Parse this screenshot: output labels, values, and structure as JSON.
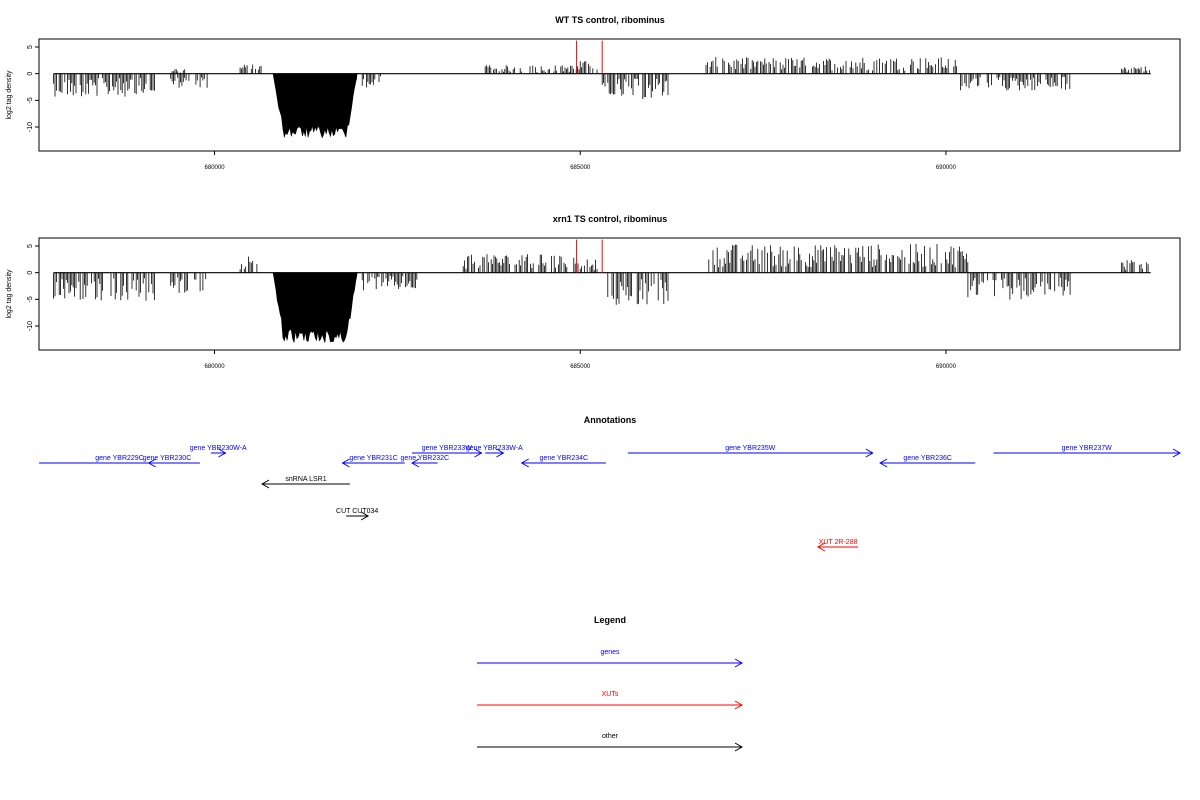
{
  "colors": {
    "gene": "#0000ff",
    "xut": "#ff0000",
    "other": "#000000",
    "signal": "#000000",
    "highlight": "#ff0000"
  },
  "chart_data": [
    {
      "type": "bar",
      "title": "WT TS control, ribominus",
      "ylabel": "log2 tag density",
      "xlim": [
        677600,
        693200
      ],
      "ylim": [
        -14.5,
        6.5
      ],
      "yticks": [
        5,
        0,
        -5,
        -10
      ],
      "xticks": [
        680000,
        685000,
        690000
      ],
      "xtick_labels": [
        "680000",
        "685000",
        "690000"
      ],
      "segments": [
        {
          "x0": 677800,
          "x1": 679200,
          "amp": -3.2,
          "sign": -1
        },
        {
          "x0": 679400,
          "x1": 679900,
          "amp": -2.0,
          "sign": -1
        },
        {
          "x0": 679400,
          "x1": 679600,
          "amp": 0.8,
          "sign": 1
        },
        {
          "x0": 680350,
          "x1": 680650,
          "amp": 1.3,
          "sign": 1
        },
        {
          "x0": 681250,
          "x1": 681950,
          "amp": -1.6,
          "sign": -1
        },
        {
          "x0": 682000,
          "x1": 682300,
          "amp": -2.0,
          "sign": -1
        },
        {
          "x0": 683700,
          "x1": 685000,
          "amp": 1.2,
          "sign": 1
        },
        {
          "x0": 685000,
          "x1": 685250,
          "amp": 1.8,
          "sign": 1
        },
        {
          "x0": 685300,
          "x1": 686200,
          "amp": -3.6,
          "sign": -1
        },
        {
          "x0": 686700,
          "x1": 690200,
          "amp": 2.3,
          "sign": 1
        },
        {
          "x0": 690200,
          "x1": 691700,
          "amp": -2.4,
          "sign": -1
        },
        {
          "x0": 692400,
          "x1": 692800,
          "amp": 1.1,
          "sign": 1
        }
      ],
      "filled": [
        {
          "x0": 680800,
          "x1": 681950,
          "depth": -11.5
        }
      ],
      "red_lines": [
        {
          "x": 684950,
          "value": 6.2
        },
        {
          "x": 685300,
          "value": 6.2
        }
      ]
    },
    {
      "type": "bar",
      "title": "xrn1 TS control, ribominus",
      "ylabel": "log2 tag density",
      "xlim": [
        677600,
        693200
      ],
      "ylim": [
        -14.5,
        6.5
      ],
      "yticks": [
        5,
        0,
        -5,
        -10
      ],
      "xticks": [
        680000,
        685000,
        690000
      ],
      "xtick_labels": [
        "680000",
        "685000",
        "690000"
      ],
      "segments": [
        {
          "x0": 677800,
          "x1": 679200,
          "amp": -4.0,
          "sign": -1
        },
        {
          "x0": 679400,
          "x1": 679900,
          "amp": -3.0,
          "sign": -1
        },
        {
          "x0": 680350,
          "x1": 680600,
          "amp": 2.5,
          "sign": 1
        },
        {
          "x0": 681300,
          "x1": 681950,
          "amp": -2.0,
          "sign": -1
        },
        {
          "x0": 682000,
          "x1": 682800,
          "amp": -2.5,
          "sign": -1
        },
        {
          "x0": 683400,
          "x1": 685000,
          "amp": 2.6,
          "sign": 1
        },
        {
          "x0": 685000,
          "x1": 685250,
          "amp": 2.0,
          "sign": 1
        },
        {
          "x0": 685300,
          "x1": 686200,
          "amp": -4.5,
          "sign": -1
        },
        {
          "x0": 686700,
          "x1": 690300,
          "amp": 4.0,
          "sign": 1
        },
        {
          "x0": 690300,
          "x1": 691700,
          "amp": -3.8,
          "sign": -1
        },
        {
          "x0": 692400,
          "x1": 692800,
          "amp": 1.8,
          "sign": 1
        }
      ],
      "filled": [
        {
          "x0": 680800,
          "x1": 681950,
          "depth": -12.5
        }
      ],
      "red_lines": [
        {
          "x": 684950,
          "value": 6.2
        },
        {
          "x": 685300,
          "value": 6.2
        }
      ]
    }
  ],
  "annotations": {
    "title": "Annotations",
    "items": [
      {
        "label": "gene YBR229C",
        "kind": "gene",
        "x0": 677600,
        "x1": 679800,
        "dir": "none",
        "row": 2
      },
      {
        "label": "gene YBR230C",
        "kind": "gene",
        "x0": 679100,
        "x1": 679600,
        "dir": "left",
        "row": 2
      },
      {
        "label": "gene YBR230W-A",
        "kind": "gene",
        "x0": 679950,
        "x1": 680150,
        "dir": "right",
        "row": 1
      },
      {
        "label": "gene YBR231C",
        "kind": "gene",
        "x0": 681750,
        "x1": 682600,
        "dir": "left",
        "row": 2
      },
      {
        "label": "gene YBR232C",
        "kind": "gene",
        "x0": 682700,
        "x1": 683050,
        "dir": "left",
        "row": 2
      },
      {
        "label": "gene YBR233W",
        "kind": "gene",
        "x0": 682700,
        "x1": 683650,
        "dir": "right",
        "row": 1
      },
      {
        "label": "gene YBR233W-A",
        "kind": "gene",
        "x0": 683700,
        "x1": 683950,
        "dir": "right",
        "row": 1
      },
      {
        "label": "gene YBR234C",
        "kind": "gene",
        "x0": 684200,
        "x1": 685350,
        "dir": "left",
        "row": 2
      },
      {
        "label": "gene YBR235W",
        "kind": "gene",
        "x0": 685650,
        "x1": 689000,
        "dir": "right",
        "row": 1
      },
      {
        "label": "gene YBR236C",
        "kind": "gene",
        "x0": 689100,
        "x1": 690400,
        "dir": "left",
        "row": 2
      },
      {
        "label": "gene YBR237W",
        "kind": "gene",
        "x0": 690650,
        "x1": 693200,
        "dir": "right",
        "row": 1
      },
      {
        "label": "snRNA LSR1",
        "kind": "other",
        "x0": 680650,
        "x1": 681850,
        "dir": "left",
        "row": 3
      },
      {
        "label": "CUT CUT034",
        "kind": "other",
        "x0": 681800,
        "x1": 682100,
        "dir": "right",
        "row": 4
      },
      {
        "label": "XUT 2R-288",
        "kind": "xut",
        "x0": 688250,
        "x1": 688800,
        "dir": "left",
        "row": 5
      }
    ]
  },
  "legend": {
    "title": "Legend",
    "items": [
      {
        "label": "genes",
        "kind": "gene"
      },
      {
        "label": "XUTs",
        "kind": "xut"
      },
      {
        "label": "other",
        "kind": "other"
      }
    ]
  }
}
